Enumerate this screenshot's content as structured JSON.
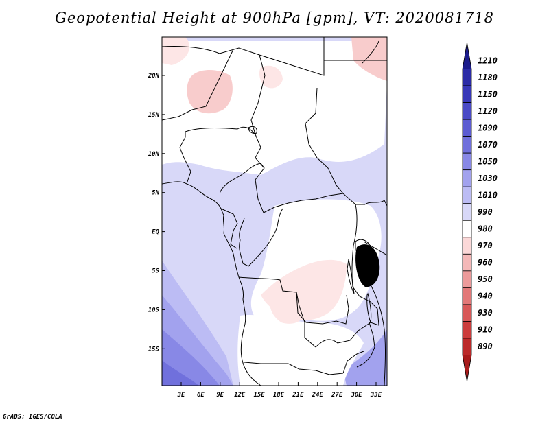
{
  "title": "Geopotential Height at 900hPa [gpm], VT: 2020081718",
  "credit": "GrADS: IGES/COLA",
  "lat_ticks": [
    "20N",
    "15N",
    "10N",
    "5N",
    "EQ",
    "5S",
    "10S",
    "15S"
  ],
  "lon_ticks": [
    "3E",
    "6E",
    "9E",
    "12E",
    "15E",
    "18E",
    "21E",
    "24E",
    "27E",
    "30E",
    "33E"
  ],
  "colorbar": {
    "levels": [
      "1210",
      "1180",
      "1150",
      "1120",
      "1090",
      "1070",
      "1050",
      "1030",
      "1010",
      "990",
      "980",
      "970",
      "960",
      "950",
      "940",
      "930",
      "910",
      "890"
    ],
    "colors": [
      "#1c1c8c",
      "#2b2ba6",
      "#3838b8",
      "#4a4ac6",
      "#5c5cd2",
      "#7070dc",
      "#8888e6",
      "#a2a2ee",
      "#bcbcf4",
      "#d8d8f8",
      "#ffffff",
      "#fbd8d8",
      "#f4b8b8",
      "#ec9a9a",
      "#e27878",
      "#d85858",
      "#cc3c3c",
      "#bc2a2a",
      "#a81c1c"
    ]
  },
  "regions": {
    "background_color": "#d8d8f8",
    "ocean_gradient": [
      "#d8d8f8",
      "#bcbcf4",
      "#a2a2ee",
      "#8888e6",
      "#7070dc"
    ],
    "neutral_color": "#ffffff",
    "low_colors": [
      "#fde6e6",
      "#f8cccc"
    ]
  }
}
